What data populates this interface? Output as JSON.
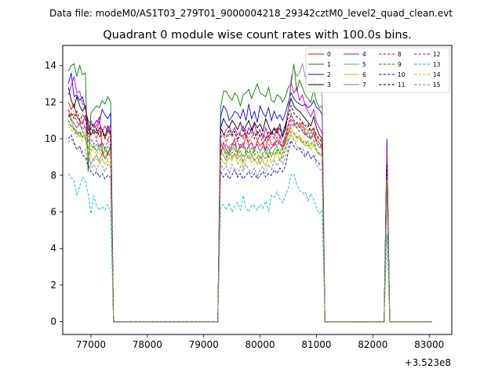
{
  "header": {
    "data_file": "Data file: modeM0/AS1T03_279T01_9000004218_29342cztM0_level2_quad_clean.evt"
  },
  "chart_data": {
    "type": "line",
    "title": "Quadrant 0 module wise count rates with 100.0s bins.",
    "xlabel": "",
    "ylabel": "",
    "x_offset_label": "+3.523e8",
    "xlim": [
      76500,
      83400
    ],
    "ylim": [
      -0.7,
      15.1
    ],
    "x_ticks": [
      77000,
      78000,
      79000,
      80000,
      81000,
      82000,
      83000
    ],
    "x_tick_labels": [
      "77000",
      "78000",
      "79000",
      "80000",
      "81000",
      "82000",
      "83000"
    ],
    "y_ticks": [
      0,
      2,
      4,
      6,
      8,
      10,
      12,
      14
    ],
    "y_tick_labels": [
      "0",
      "2",
      "4",
      "6",
      "8",
      "10",
      "12",
      "14"
    ],
    "grid": false,
    "legend_position": "top-right",
    "x": [
      76600,
      76650,
      76700,
      76750,
      76800,
      76850,
      76900,
      76950,
      77000,
      77050,
      77100,
      77150,
      77200,
      77250,
      77300,
      77350,
      77400,
      78000,
      79000,
      79200,
      79250,
      79300,
      79350,
      79400,
      79450,
      79500,
      79550,
      79600,
      79650,
      79700,
      79750,
      79800,
      79850,
      79900,
      79950,
      80000,
      80050,
      80100,
      80150,
      80200,
      80250,
      80300,
      80350,
      80400,
      80450,
      80500,
      80550,
      80600,
      80650,
      80700,
      80750,
      80800,
      80850,
      80900,
      80950,
      81000,
      81050,
      81100,
      81150,
      81200,
      82000,
      82200,
      82250,
      82300,
      82350,
      82400,
      82450,
      82500,
      82550,
      82600,
      82650,
      82700,
      82750,
      82800,
      82850,
      82900,
      82950,
      83000,
      83050
    ],
    "series": [
      {
        "name": "0",
        "color": "#ff0000",
        "dash": "solid",
        "active": [
          12.0,
          11.6,
          11.9,
          11.2,
          11.0,
          10.8,
          11.3,
          10.4,
          11.0,
          10.6,
          10.7,
          11.2,
          9.4,
          8.9,
          9.2,
          9.6,
          9.1,
          9.8,
          9.4,
          9.1,
          9.6,
          10.0,
          9.2,
          9.7,
          9.5,
          10.2,
          9.6,
          9.8,
          9.3,
          9.9,
          9.6,
          9.8,
          9.4,
          10.2,
          9.7,
          9.6,
          9.9,
          9.7,
          9.5,
          10.0,
          10.3,
          10.8,
          10.7,
          10.9,
          10.6,
          10.9,
          10.3,
          10.1,
          10.0,
          10.4,
          9.9,
          9.8,
          9.5,
          8.4
        ]
      },
      {
        "name": "1",
        "color": "#008000",
        "dash": "solid",
        "active": [
          13.7,
          14.0,
          14.1,
          13.4,
          14.0,
          13.5,
          13.6,
          8.2,
          11.4,
          11.6,
          11.8,
          11.7,
          12.1,
          11.9,
          12.3,
          12.0,
          11.7,
          12.6,
          12.6,
          12.3,
          12.1,
          12.5,
          12.3,
          11.8,
          12.4,
          12.5,
          12.7,
          12.2,
          12.6,
          13.0,
          12.5,
          12.4,
          12.3,
          12.8,
          12.1,
          12.0,
          12.4,
          12.3,
          12.0,
          12.3,
          12.8,
          13.0,
          14.1,
          12.6,
          13.2,
          12.8,
          12.4,
          12.2,
          12.0,
          12.7,
          12.0,
          11.7,
          11.8,
          9.4
        ]
      },
      {
        "name": "2",
        "color": "#0000ff",
        "dash": "solid",
        "active": [
          13.0,
          13.6,
          12.3,
          12.4,
          12.1,
          12.3,
          11.6,
          11.0,
          10.8,
          10.7,
          11.0,
          10.9,
          11.6,
          11.3,
          11.1,
          11.4,
          11.2,
          11.8,
          11.6,
          11.0,
          11.2,
          11.5,
          11.4,
          11.1,
          11.6,
          11.0,
          11.9,
          11.1,
          11.5,
          10.9,
          11.8,
          11.4,
          11.2,
          11.7,
          11.0,
          11.5,
          11.1,
          11.3,
          11.0,
          11.4,
          12.0,
          12.5,
          12.2,
          12.0,
          11.9,
          11.8,
          11.9,
          11.7,
          11.8,
          12.1,
          11.7,
          11.6,
          11.3,
          10.0
        ]
      },
      {
        "name": "3",
        "color": "#000000",
        "dash": "solid",
        "active": [
          12.8,
          12.1,
          11.7,
          12.3,
          11.8,
          11.5,
          11.8,
          10.8,
          10.2,
          10.5,
          10.3,
          10.6,
          10.5,
          10.1,
          10.7,
          10.3,
          10.6,
          11.1,
          10.8,
          10.6,
          11.0,
          10.8,
          10.5,
          10.9,
          10.4,
          10.7,
          11.0,
          10.5,
          10.9,
          10.6,
          10.8,
          10.4,
          11.1,
          10.7,
          10.3,
          10.6,
          10.4,
          10.8,
          10.1,
          10.6,
          11.6,
          12.2,
          11.8,
          11.6,
          11.5,
          11.3,
          11.1,
          10.9,
          10.7,
          11.2,
          10.6,
          10.2,
          10.0,
          9.1
        ]
      },
      {
        "name": "4",
        "color": "#bf00bf",
        "dash": "solid",
        "active": [
          12.4,
          12.9,
          13.4,
          12.5,
          12.6,
          11.9,
          11.8,
          10.4,
          10.6,
          10.8,
          10.5,
          10.9,
          10.4,
          10.7,
          10.3,
          10.8,
          10.6,
          10.2,
          10.5,
          10.7,
          10.3,
          10.6,
          10.2,
          10.4,
          10.7,
          10.1,
          10.6,
          10.3,
          10.8,
          10.2,
          10.5,
          10.0,
          10.6,
          10.1,
          10.4,
          10.2,
          10.6,
          10.0,
          10.3,
          10.8,
          11.4,
          13.1,
          12.5,
          12.8,
          12.1,
          12.4,
          11.8,
          11.5,
          11.2,
          11.6,
          10.9,
          10.6,
          10.3,
          9.6
        ]
      },
      {
        "name": "5",
        "color": "#3cb371",
        "dash": "solid",
        "active": [
          11.6,
          11.1,
          10.8,
          10.6,
          10.8,
          10.4,
          10.3,
          10.0,
          9.7,
          9.5,
          9.7,
          9.4,
          9.8,
          9.3,
          9.6,
          9.4,
          9.7,
          9.5,
          9.2,
          9.6,
          9.4,
          9.7,
          9.3,
          9.5,
          9.8,
          9.2,
          9.6,
          9.1,
          9.4,
          9.7,
          9.3,
          9.6,
          9.2,
          9.5,
          9.0,
          9.4,
          9.6,
          9.2,
          9.5,
          9.8,
          10.8,
          11.4,
          10.9,
          10.6,
          10.8,
          10.4,
          10.2,
          10.5,
          10.0,
          10.3,
          9.8,
          9.5,
          9.7,
          8.8
        ]
      },
      {
        "name": "6",
        "color": "#bfbf00",
        "dash": "solid",
        "active": [
          11.4,
          11.0,
          10.5,
          10.3,
          10.1,
          10.4,
          10.0,
          9.6,
          9.0,
          8.8,
          8.9,
          8.7,
          8.9,
          8.6,
          8.8,
          8.5,
          9.0,
          8.7,
          8.6,
          9.0,
          8.8,
          9.2,
          8.6,
          8.9,
          8.4,
          8.9,
          9.1,
          8.7,
          8.9,
          8.6,
          9.0,
          8.8,
          8.5,
          9.1,
          8.7,
          8.9,
          9.4,
          8.8,
          9.2,
          9.6,
          10.2,
          10.6,
          10.3,
          10.0,
          10.2,
          9.8,
          9.6,
          9.9,
          9.4,
          9.7,
          9.3,
          9.1,
          9.2,
          7.9
        ]
      },
      {
        "name": "7",
        "color": "#808080",
        "dash": "solid",
        "active": [
          10.8,
          10.7,
          10.6,
          10.4,
          10.3,
          10.1,
          10.2,
          9.2,
          8.6,
          8.9,
          9.1,
          8.8,
          9.2,
          8.9,
          9.3,
          9.0,
          9.2,
          9.1,
          8.8,
          9.3,
          9.0,
          9.2,
          8.9,
          9.1,
          8.7,
          9.2,
          8.9,
          9.1,
          8.8,
          9.0,
          8.6,
          9.1,
          8.9,
          9.2,
          9.5,
          9.7,
          10.1,
          9.8,
          9.6,
          10.2,
          11.6,
          13.3,
          13.9,
          13.4,
          13.6,
          14.1,
          13.4,
          12.8,
          13.1,
          13.3,
          12.7,
          12.9,
          12.4,
          9.2
        ]
      },
      {
        "name": "8",
        "color": "#ff0000",
        "dash": "dashed",
        "active": [
          11.6,
          11.2,
          11.4,
          10.9,
          10.8,
          11.0,
          10.6,
          10.1,
          10.2,
          10.4,
          10.0,
          10.5,
          10.1,
          10.3,
          9.9,
          10.4,
          10.1,
          10.2,
          9.8,
          10.3,
          10.1,
          10.4,
          9.9,
          10.2,
          10.0,
          10.3,
          9.8,
          10.1,
          10.4,
          9.9,
          10.2,
          9.7,
          10.1,
          9.9,
          10.3,
          10.0,
          10.5,
          10.2,
          9.8,
          10.1,
          10.8,
          11.3,
          11.0,
          10.8,
          10.9,
          10.6,
          10.5,
          10.7,
          10.3,
          10.6,
          10.1,
          9.9,
          10.0,
          9.1
        ]
      },
      {
        "name": "9",
        "color": "#008000",
        "dash": "dashed",
        "active": [
          11.0,
          10.7,
          10.5,
          10.2,
          10.4,
          10.1,
          10.0,
          9.4,
          9.4,
          9.6,
          9.3,
          9.7,
          9.2,
          9.5,
          9.1,
          9.6,
          9.3,
          9.5,
          9.0,
          9.4,
          9.2,
          9.5,
          9.1,
          9.3,
          9.0,
          9.4,
          9.2,
          9.5,
          9.1,
          9.3,
          8.9,
          9.2,
          9.4,
          9.0,
          9.3,
          9.1,
          9.4,
          9.2,
          8.9,
          9.4,
          9.9,
          10.4,
          10.3,
          10.1,
          10.0,
          9.8,
          9.9,
          9.6,
          9.7,
          9.9,
          9.4,
          9.2,
          9.1,
          8.4
        ]
      },
      {
        "name": "10",
        "color": "#0000ff",
        "dash": "dashed",
        "active": [
          10.0,
          10.2,
          9.8,
          9.4,
          9.6,
          9.1,
          9.0,
          8.5,
          8.2,
          8.0,
          8.2,
          7.9,
          8.1,
          7.8,
          8.0,
          7.9,
          8.2,
          7.9,
          8.1,
          7.8,
          8.0,
          8.3,
          7.9,
          8.1,
          7.8,
          8.0,
          8.2,
          7.9,
          8.1,
          7.8,
          8.0,
          8.2,
          7.9,
          8.1,
          8.0,
          8.3,
          8.1,
          8.4,
          8.2,
          8.5,
          9.3,
          9.9,
          9.6,
          9.4,
          9.5,
          9.2,
          9.0,
          9.3,
          8.9,
          9.1,
          8.8,
          8.6,
          8.7,
          7.6
        ]
      },
      {
        "name": "11",
        "color": "#000000",
        "dash": "dashed",
        "active": [
          11.2,
          11.4,
          11.1,
          11.5,
          11.0,
          11.3,
          11.1,
          10.2,
          10.6,
          10.3,
          10.5,
          10.1,
          10.4,
          10.0,
          10.5,
          10.2,
          10.6,
          10.3,
          10.1,
          10.5,
          10.2,
          10.4,
          10.0,
          10.3,
          10.1,
          10.5,
          10.2,
          10.6,
          10.0,
          10.4,
          10.1,
          10.3,
          9.9,
          10.4,
          10.2,
          10.5,
          10.3,
          10.6,
          10.1,
          10.7,
          11.2,
          11.8,
          11.4,
          11.2,
          11.1,
          10.9,
          10.7,
          10.8,
          10.4,
          10.6,
          10.2,
          10.0,
          9.8,
          8.6
        ]
      },
      {
        "name": "12",
        "color": "#bf00bf",
        "dash": "dashed",
        "active": [
          11.3,
          11.0,
          10.8,
          10.6,
          10.9,
          10.5,
          10.7,
          9.8,
          10.0,
          9.7,
          9.9,
          9.6,
          9.8,
          9.5,
          9.9,
          9.6,
          9.8,
          9.5,
          9.7,
          9.4,
          9.8,
          9.6,
          9.9,
          9.5,
          9.7,
          9.4,
          9.6,
          9.8,
          9.5,
          9.7,
          9.3,
          9.6,
          9.4,
          9.7,
          9.5,
          9.8,
          9.6,
          9.9,
          9.4,
          9.8,
          10.6,
          11.1,
          10.8,
          10.6,
          10.4,
          10.5,
          10.2,
          10.3,
          10.0,
          10.2,
          9.8,
          9.6,
          9.5,
          8.5
        ]
      },
      {
        "name": "13",
        "color": "#00bfbf",
        "dash": "dashed",
        "active": [
          8.1,
          7.9,
          7.7,
          6.9,
          7.4,
          7.9,
          7.7,
          7.0,
          5.9,
          6.9,
          6.3,
          6.1,
          6.3,
          6.1,
          6.4,
          6.0,
          6.3,
          6.4,
          6.1,
          6.5,
          6.0,
          6.3,
          6.5,
          6.1,
          6.9,
          6.2,
          6.0,
          6.4,
          6.3,
          6.1,
          6.4,
          6.2,
          6.6,
          6.0,
          6.9,
          6.8,
          7.1,
          6.7,
          6.5,
          6.9,
          7.3,
          8.0,
          8.1,
          7.5,
          7.2,
          7.0,
          7.1,
          6.6,
          7.0,
          6.7,
          6.2,
          5.9,
          6.1,
          4.8
        ]
      },
      {
        "name": "14",
        "color": "#bfbf00",
        "dash": "dashed",
        "active": [
          10.7,
          10.5,
          10.3,
          10.1,
          10.2,
          9.9,
          10.0,
          9.0,
          9.3,
          9.5,
          9.1,
          9.4,
          9.0,
          9.3,
          8.9,
          9.2,
          9.0,
          9.4,
          9.1,
          9.3,
          8.9,
          9.2,
          9.0,
          9.4,
          8.8,
          9.1,
          9.3,
          8.9,
          9.2,
          9.0,
          9.3,
          8.7,
          9.1,
          9.3,
          9.0,
          9.4,
          9.2,
          9.5,
          9.1,
          9.6,
          10.0,
          10.3,
          10.0,
          9.8,
          10.1,
          9.7,
          9.8,
          9.5,
          9.6,
          9.8,
          9.3,
          9.2,
          9.0,
          7.8
        ]
      },
      {
        "name": "15",
        "color": "#808080",
        "dash": "dashed",
        "active": [
          9.8,
          10.0,
          9.7,
          9.4,
          9.6,
          9.3,
          9.4,
          8.6,
          8.4,
          8.6,
          8.3,
          8.7,
          8.5,
          8.2,
          8.6,
          8.4,
          8.7,
          8.3,
          8.5,
          8.1,
          8.6,
          8.3,
          8.0,
          8.5,
          8.2,
          8.6,
          8.3,
          8.1,
          8.4,
          7.9,
          8.3,
          8.5,
          8.1,
          8.6,
          8.3,
          8.8,
          8.5,
          8.9,
          8.6,
          9.0,
          9.6,
          10.2,
          9.9,
          9.6,
          9.4,
          9.5,
          9.1,
          9.3,
          8.9,
          9.1,
          8.6,
          8.4,
          8.2,
          7.1
        ]
      }
    ]
  }
}
